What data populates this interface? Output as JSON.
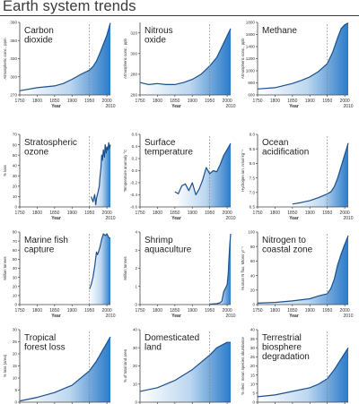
{
  "page": {
    "title": "Earth system trends"
  },
  "colors": {
    "line": "#1b4f8c",
    "fill_light": "#ffffff",
    "fill_dark": "#2b7bc9",
    "axis": "#444444",
    "marker_line": "#8a8a8a"
  },
  "chart_data": [
    {
      "type": "area",
      "title": [
        "Carbon",
        "dioxide"
      ],
      "xlabel": "Year",
      "ylabel": "Atmospheric conc., ppm",
      "xlim": [
        1750,
        2010
      ],
      "ylim": [
        270,
        390
      ],
      "xticks": [
        "1750",
        "1800",
        "1850",
        "1900",
        "1950",
        "2000"
      ],
      "yticks": [
        "270",
        "300",
        "330",
        "360",
        "390"
      ],
      "marker_year": "1950",
      "end_year_label": "2010",
      "x": [
        1750,
        1800,
        1850,
        1875,
        1900,
        1925,
        1950,
        1960,
        1970,
        1980,
        1990,
        2000,
        2010
      ],
      "values": [
        277,
        282,
        285,
        289,
        296,
        304,
        311,
        317,
        326,
        339,
        354,
        369,
        389
      ]
    },
    {
      "type": "area",
      "title": [
        "Nitrous",
        "oxide"
      ],
      "xlabel": "Year",
      "ylabel": "Atmospheric conc., ppb",
      "xlim": [
        1750,
        2010
      ],
      "ylim": [
        260,
        330
      ],
      "xticks": [
        "1750",
        "1800",
        "1850",
        "1900",
        "1950",
        "2000"
      ],
      "yticks": [
        "260",
        "280",
        "300",
        "320"
      ],
      "marker_year": "1950",
      "end_year_label": "2010",
      "x": [
        1750,
        1775,
        1800,
        1825,
        1850,
        1875,
        1900,
        1925,
        1950,
        1970,
        1990,
        2010
      ],
      "values": [
        272,
        270,
        271,
        270,
        270,
        272,
        275,
        280,
        288,
        296,
        310,
        324
      ]
    },
    {
      "type": "area",
      "title": [
        "Methane"
      ],
      "xlabel": "Year",
      "ylabel": "Atmospheric conc., ppb",
      "xlim": [
        1750,
        2010
      ],
      "ylim": [
        600,
        1800
      ],
      "xticks": [
        "1750",
        "1800",
        "1850",
        "1900",
        "1950",
        "2000"
      ],
      "yticks": [
        "600",
        "800",
        "1000",
        "1200",
        "1400",
        "1600",
        "1800"
      ],
      "marker_year": "1950",
      "end_year_label": "2010",
      "x": [
        1750,
        1800,
        1850,
        1875,
        1900,
        1925,
        1950,
        1965,
        1980,
        1990,
        2000,
        2010
      ],
      "values": [
        700,
        720,
        790,
        840,
        900,
        990,
        1120,
        1300,
        1550,
        1700,
        1760,
        1790
      ]
    },
    {
      "type": "area",
      "title": [
        "Stratospheric",
        "ozone"
      ],
      "xlabel": "Year",
      "ylabel": "% loss",
      "xlim": [
        1750,
        2010
      ],
      "ylim": [
        0,
        70
      ],
      "xticks": [
        "1750",
        "1800",
        "1850",
        "1900",
        "1950",
        "2000"
      ],
      "yticks": [
        "0",
        "10",
        "20",
        "30",
        "40",
        "50",
        "60",
        "70"
      ],
      "marker_year": "1950",
      "end_year_label": "2010",
      "x": [
        1955,
        1960,
        1965,
        1968,
        1970,
        1975,
        1978,
        1980,
        1983,
        1985,
        1987,
        1990,
        1993,
        1995,
        1998,
        2000,
        2003,
        2005,
        2008,
        2010
      ],
      "values": [
        10,
        5,
        12,
        2,
        8,
        15,
        20,
        28,
        38,
        50,
        45,
        55,
        48,
        60,
        52,
        58,
        55,
        62,
        57,
        60
      ]
    },
    {
      "type": "area",
      "title": [
        "Surface",
        "temperature"
      ],
      "xlabel": "Year",
      "ylabel": "Temperature anomaly °C",
      "xlim": [
        1750,
        2010
      ],
      "ylim": [
        -0.6,
        0.6
      ],
      "xticks": [
        "1750",
        "1800",
        "1850",
        "1900",
        "1950",
        "2000"
      ],
      "yticks": [
        "-0.6",
        "-0.4",
        "-0.2",
        "0.0",
        "0.2",
        "0.4",
        "0.6"
      ],
      "marker_year": "1950",
      "end_year_label": "2010",
      "x": [
        1850,
        1860,
        1870,
        1880,
        1890,
        1900,
        1910,
        1920,
        1930,
        1940,
        1950,
        1960,
        1970,
        1980,
        1990,
        2000,
        2010
      ],
      "values": [
        -0.35,
        -0.38,
        -0.25,
        -0.22,
        -0.33,
        -0.2,
        -0.4,
        -0.3,
        -0.15,
        0.05,
        -0.05,
        0.0,
        -0.02,
        0.1,
        0.25,
        0.35,
        0.45
      ]
    },
    {
      "type": "area",
      "title": [
        "Ocean",
        "acidification"
      ],
      "xlabel": "Year",
      "ylabel": "Hydrogen ion, nmol kg⁻¹",
      "xlim": [
        1750,
        2010
      ],
      "ylim": [
        6.5,
        9.0
      ],
      "xticks": [
        "1750",
        "1800",
        "1850",
        "1900",
        "1950",
        "2000"
      ],
      "yticks": [
        "6.5",
        "7.0",
        "7.5",
        "8.0",
        "8.5",
        "9.0"
      ],
      "marker_year": "1950",
      "end_year_label": "2010",
      "x": [
        1850,
        1875,
        1900,
        1925,
        1950,
        1960,
        1970,
        1980,
        1990,
        2000,
        2010
      ],
      "values": [
        6.6,
        6.65,
        6.72,
        6.82,
        6.95,
        7.02,
        7.2,
        7.5,
        7.9,
        8.3,
        8.7
      ]
    },
    {
      "type": "area",
      "title": [
        "Marine fish",
        "capture"
      ],
      "xlabel": "Year",
      "ylabel": "Million tonnes",
      "xlim": [
        1750,
        2010
      ],
      "ylim": [
        0,
        80
      ],
      "xticks": [
        "1750",
        "1800",
        "1850",
        "1900",
        "1950",
        "2000"
      ],
      "yticks": [
        "0",
        "10",
        "20",
        "30",
        "40",
        "50",
        "60",
        "70",
        "80"
      ],
      "marker_year": "1950",
      "end_year_label": "2010",
      "x": [
        1950,
        1955,
        1960,
        1965,
        1970,
        1973,
        1975,
        1980,
        1985,
        1990,
        1995,
        2000,
        2005,
        2010
      ],
      "values": [
        17,
        22,
        30,
        42,
        58,
        55,
        57,
        63,
        72,
        78,
        76,
        78,
        74,
        73
      ]
    },
    {
      "type": "area",
      "title": [
        "Shrimp",
        "aquaculture"
      ],
      "xlabel": "Year",
      "ylabel": "Million tonnes",
      "xlim": [
        1750,
        2010
      ],
      "ylim": [
        0,
        4
      ],
      "xticks": [
        "1750",
        "1800",
        "1850",
        "1900",
        "1950",
        "2000"
      ],
      "yticks": [
        "0",
        "1",
        "2",
        "3",
        "4"
      ],
      "marker_year": "1950",
      "end_year_label": "2010",
      "x": [
        1950,
        1970,
        1980,
        1985,
        1990,
        1995,
        2000,
        2003,
        2005,
        2008,
        2010
      ],
      "values": [
        0.02,
        0.05,
        0.1,
        0.2,
        0.7,
        0.9,
        1.1,
        1.7,
        2.5,
        3.4,
        3.9
      ]
    },
    {
      "type": "area",
      "title": [
        "Nitrogen to",
        "coastal zone"
      ],
      "xlabel": "Year",
      "ylabel": "Human N flux, Mtons yr⁻¹",
      "xlim": [
        1750,
        2010
      ],
      "ylim": [
        0,
        100
      ],
      "xticks": [
        "1750",
        "1800",
        "1850",
        "1900",
        "1950",
        "2000"
      ],
      "yticks": [
        "0",
        "20",
        "40",
        "60",
        "80",
        "100"
      ],
      "marker_year": "1950",
      "end_year_label": "2010",
      "x": [
        1750,
        1800,
        1850,
        1900,
        1925,
        1950,
        1960,
        1970,
        1980,
        1990,
        2000,
        2010
      ],
      "values": [
        2,
        3,
        5,
        8,
        12,
        15,
        22,
        35,
        55,
        70,
        83,
        95
      ]
    },
    {
      "type": "area",
      "title": [
        "Tropical",
        "forest loss"
      ],
      "xlabel": "Year",
      "ylabel": "% loss (area)",
      "xlim": [
        1750,
        2010
      ],
      "ylim": [
        0,
        30
      ],
      "xticks": [
        "1750",
        "1800",
        "1850",
        "1900",
        "1950",
        "2000"
      ],
      "yticks": [
        "0",
        "5",
        "10",
        "15",
        "20",
        "25",
        "30"
      ],
      "marker_year": "1950",
      "end_year_label": "2010",
      "x": [
        1750,
        1800,
        1850,
        1875,
        1900,
        1925,
        1950,
        1970,
        1990,
        2010
      ],
      "values": [
        0.5,
        2,
        4,
        5.5,
        7,
        10,
        13,
        17,
        22,
        27
      ]
    },
    {
      "type": "area",
      "title": [
        "Domesticated",
        "land"
      ],
      "xlabel": "Year",
      "ylabel": "% of total land area",
      "xlim": [
        1750,
        2010
      ],
      "ylim": [
        0,
        40
      ],
      "xticks": [
        "1750",
        "1800",
        "1850",
        "1900",
        "1950",
        "2000"
      ],
      "yticks": [
        "0",
        "10",
        "20",
        "30",
        "40"
      ],
      "marker_year": "1950",
      "end_year_label": "2010",
      "x": [
        1750,
        1800,
        1850,
        1875,
        1900,
        1925,
        1950,
        1970,
        1990,
        2000,
        2010
      ],
      "values": [
        6,
        8,
        12,
        15,
        18,
        22,
        26,
        30,
        32,
        33,
        33
      ]
    },
    {
      "type": "area",
      "title": [
        "Terrestrial",
        "biosphere",
        "degradation"
      ],
      "xlabel": "Year",
      "ylabel": "% decr. mean species abundance",
      "xlim": [
        1750,
        2010
      ],
      "ylim": [
        0,
        40
      ],
      "xticks": [
        "1750",
        "1800",
        "1850",
        "1900",
        "1950",
        "2000"
      ],
      "yticks": [
        "0",
        "5",
        "10",
        "15",
        "20",
        "25",
        "30",
        "35",
        "40"
      ],
      "marker_year": "1950",
      "end_year_label": "2010",
      "x": [
        1750,
        1800,
        1850,
        1900,
        1925,
        1950,
        1970,
        1990,
        2010
      ],
      "values": [
        3,
        4,
        6,
        8,
        10,
        13,
        18,
        24,
        30
      ]
    }
  ]
}
